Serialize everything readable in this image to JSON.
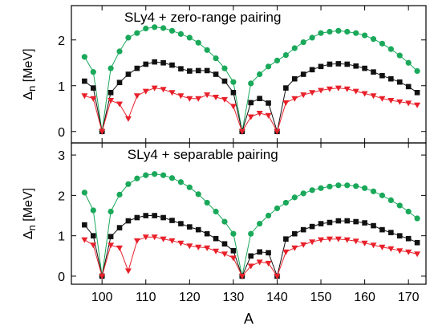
{
  "chart_data": [
    {
      "type": "line",
      "title": "SLy4 + zero-range pairing",
      "ylabel_symbol": "Δ",
      "ylabel_sub": "n",
      "ylabel_unit": " [MeV]",
      "xlabel": "A",
      "xlim": [
        93,
        174
      ],
      "ylim": [
        -0.25,
        2.75
      ],
      "xticks": [
        100,
        110,
        120,
        130,
        140,
        150,
        160,
        170
      ],
      "yticks": [
        0,
        1,
        2
      ],
      "series": [
        {
          "marker": "circle",
          "color": "#1aa85a",
          "x": [
            96,
            98,
            100,
            102,
            104,
            106,
            108,
            110,
            112,
            114,
            116,
            118,
            120,
            122,
            124,
            126,
            128,
            130,
            132,
            134,
            136,
            138,
            140,
            142,
            144,
            146,
            148,
            150,
            152,
            154,
            156,
            158,
            160,
            162,
            164,
            166,
            168,
            170,
            172
          ],
          "y": [
            1.63,
            1.3,
            0.0,
            1.38,
            1.75,
            2.05,
            2.15,
            2.25,
            2.28,
            2.26,
            2.2,
            2.13,
            2.05,
            1.94,
            1.78,
            1.6,
            1.38,
            1.08,
            0.0,
            1.05,
            1.25,
            1.42,
            1.55,
            1.67,
            1.82,
            1.95,
            2.05,
            2.15,
            2.18,
            2.2,
            2.18,
            2.15,
            2.1,
            2.02,
            1.92,
            1.8,
            1.66,
            1.5,
            1.32
          ]
        },
        {
          "marker": "square",
          "color": "#111111",
          "x": [
            96,
            98,
            100,
            102,
            104,
            106,
            108,
            110,
            112,
            114,
            116,
            118,
            120,
            122,
            124,
            126,
            128,
            130,
            132,
            134,
            136,
            138,
            140,
            142,
            144,
            146,
            148,
            150,
            152,
            154,
            156,
            158,
            160,
            162,
            164,
            166,
            168,
            170,
            172
          ],
          "y": [
            1.1,
            0.95,
            0.0,
            0.85,
            1.07,
            1.25,
            1.38,
            1.47,
            1.52,
            1.5,
            1.45,
            1.37,
            1.32,
            1.33,
            1.33,
            1.25,
            1.1,
            0.85,
            0.0,
            0.63,
            0.72,
            0.62,
            0.0,
            0.95,
            1.15,
            1.25,
            1.35,
            1.42,
            1.47,
            1.48,
            1.47,
            1.43,
            1.38,
            1.3,
            1.22,
            1.15,
            1.08,
            0.98,
            0.85
          ]
        },
        {
          "marker": "triangle-down",
          "color": "#e8202a",
          "x": [
            96,
            98,
            100,
            102,
            104,
            106,
            108,
            110,
            112,
            114,
            116,
            118,
            120,
            122,
            124,
            126,
            128,
            130,
            132,
            134,
            136,
            138,
            140,
            142,
            144,
            146,
            148,
            150,
            152,
            154,
            156,
            158,
            160,
            162,
            164,
            166,
            168,
            170,
            172
          ],
          "y": [
            0.78,
            0.72,
            0.0,
            0.68,
            0.6,
            0.28,
            0.78,
            0.88,
            0.95,
            0.92,
            0.85,
            0.78,
            0.72,
            0.72,
            0.8,
            0.75,
            0.7,
            0.55,
            0.0,
            0.32,
            0.4,
            0.35,
            0.0,
            0.63,
            0.72,
            0.8,
            0.85,
            0.9,
            0.93,
            0.95,
            0.93,
            0.88,
            0.83,
            0.78,
            0.72,
            0.68,
            0.65,
            0.62,
            0.58
          ]
        }
      ]
    },
    {
      "type": "line",
      "title": "SLy4 + separable pairing",
      "ylabel_symbol": "Δ",
      "ylabel_sub": "n",
      "ylabel_unit": " [MeV]",
      "xlabel": "A",
      "xlim": [
        93,
        174
      ],
      "ylim": [
        -0.2,
        3.3
      ],
      "xticks": [
        100,
        110,
        120,
        130,
        140,
        150,
        160,
        170
      ],
      "yticks": [
        0,
        1,
        2,
        3
      ],
      "series": [
        {
          "marker": "circle",
          "color": "#1aa85a",
          "x": [
            96,
            98,
            100,
            102,
            104,
            106,
            108,
            110,
            112,
            114,
            116,
            118,
            120,
            122,
            124,
            126,
            128,
            130,
            132,
            134,
            136,
            138,
            140,
            142,
            144,
            146,
            148,
            150,
            152,
            154,
            156,
            158,
            160,
            162,
            164,
            166,
            168,
            170,
            172
          ],
          "y": [
            2.07,
            1.63,
            0.0,
            1.6,
            2.02,
            2.28,
            2.42,
            2.5,
            2.53,
            2.5,
            2.43,
            2.33,
            2.2,
            2.03,
            1.82,
            1.6,
            1.35,
            1.05,
            0.0,
            1.05,
            1.3,
            1.5,
            1.68,
            1.82,
            1.95,
            2.05,
            2.13,
            2.18,
            2.22,
            2.25,
            2.25,
            2.23,
            2.18,
            2.1,
            2.0,
            1.88,
            1.75,
            1.6,
            1.43
          ]
        },
        {
          "marker": "square",
          "color": "#111111",
          "x": [
            96,
            98,
            100,
            102,
            104,
            106,
            108,
            110,
            112,
            114,
            116,
            118,
            120,
            122,
            124,
            126,
            128,
            130,
            132,
            134,
            136,
            138,
            140,
            142,
            144,
            146,
            148,
            150,
            152,
            154,
            156,
            158,
            160,
            162,
            164,
            166,
            168,
            170,
            172
          ],
          "y": [
            1.27,
            1.0,
            0.0,
            0.98,
            1.2,
            1.37,
            1.45,
            1.5,
            1.5,
            1.45,
            1.38,
            1.3,
            1.22,
            1.15,
            1.05,
            0.93,
            0.8,
            0.63,
            0.0,
            0.5,
            0.6,
            0.58,
            0.0,
            0.92,
            1.05,
            1.15,
            1.23,
            1.3,
            1.33,
            1.37,
            1.37,
            1.35,
            1.32,
            1.25,
            1.15,
            1.08,
            1.0,
            0.93,
            0.83
          ]
        },
        {
          "marker": "triangle-down",
          "color": "#e8202a",
          "x": [
            96,
            98,
            100,
            102,
            104,
            106,
            108,
            110,
            112,
            114,
            116,
            118,
            120,
            122,
            124,
            126,
            128,
            130,
            132,
            134,
            136,
            138,
            140,
            142,
            144,
            146,
            148,
            150,
            152,
            154,
            156,
            158,
            160,
            162,
            164,
            166,
            168,
            170,
            172
          ],
          "y": [
            0.9,
            0.77,
            0.0,
            0.77,
            0.7,
            0.13,
            0.88,
            0.97,
            0.97,
            0.92,
            0.88,
            0.82,
            0.75,
            0.72,
            0.7,
            0.62,
            0.55,
            0.45,
            0.0,
            0.25,
            0.35,
            0.32,
            0.0,
            0.6,
            0.7,
            0.78,
            0.85,
            0.9,
            0.92,
            0.92,
            0.9,
            0.87,
            0.82,
            0.77,
            0.72,
            0.68,
            0.63,
            0.6,
            0.55
          ]
        }
      ]
    }
  ]
}
